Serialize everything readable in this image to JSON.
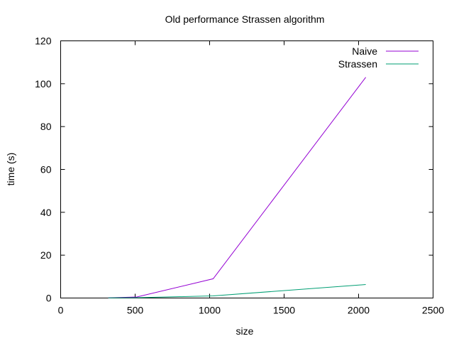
{
  "chart_data": {
    "type": "line",
    "title": "Old performance Strassen algorithm",
    "xlabel": "size",
    "ylabel": "time (s)",
    "xlim": [
      0,
      2500
    ],
    "ylim": [
      0,
      120
    ],
    "xticks": [
      0,
      500,
      1000,
      1500,
      2000,
      2500
    ],
    "yticks": [
      0,
      20,
      40,
      60,
      80,
      100,
      120
    ],
    "grid": false,
    "legend": "top-right",
    "series": [
      {
        "name": "Naive",
        "color": "#9400d3",
        "x": [
          320,
          512,
          1024,
          2048
        ],
        "y": [
          0.1,
          0.5,
          9,
          103
        ]
      },
      {
        "name": "Strassen",
        "color": "#009e73",
        "x": [
          320,
          512,
          1024,
          2048
        ],
        "y": [
          0.05,
          0.15,
          1,
          6.3
        ]
      }
    ]
  }
}
